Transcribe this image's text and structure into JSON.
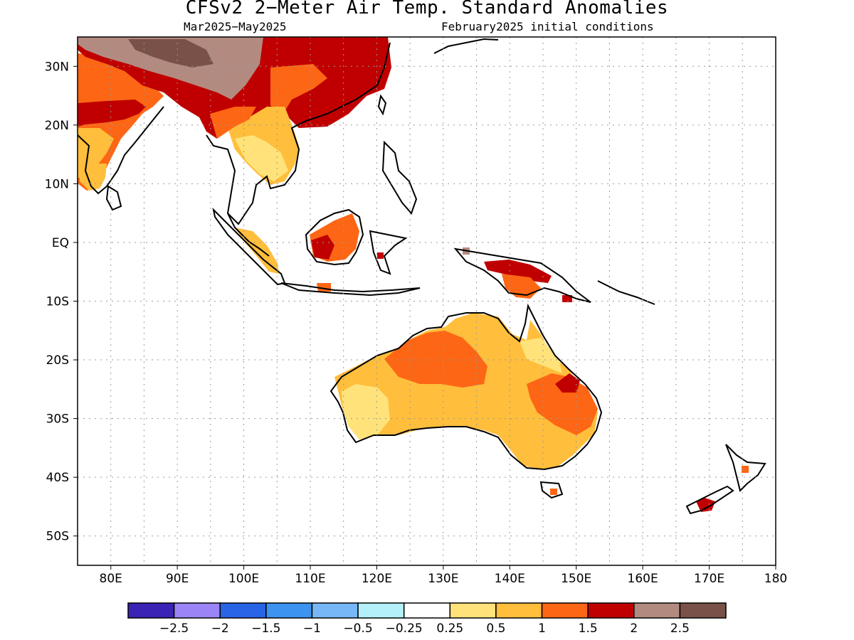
{
  "title": "CFSv2 2−Meter Air Temp. Standard Anomalies",
  "period": "Mar2025−May2025",
  "init": "February2025 initial conditions",
  "lat_labels": [
    "30N",
    "20N",
    "10N",
    "EQ",
    "10S",
    "20S",
    "30S",
    "40S",
    "50S"
  ],
  "lon_labels": [
    "80E",
    "90E",
    "100E",
    "110E",
    "120E",
    "130E",
    "140E",
    "150E",
    "160E",
    "170E",
    "180"
  ],
  "colorbar": {
    "colors": [
      "#3a23b5",
      "#9b84f5",
      "#2a64e6",
      "#3c93f0",
      "#78b7f7",
      "#b4f0fa",
      "#ffffff",
      "#ffe37a",
      "#ffbe3c",
      "#fd6614",
      "#c00000",
      "#b38a80",
      "#7a5148"
    ],
    "labels": [
      "−2.5",
      "−2",
      "−1.5",
      "−1",
      "−0.5",
      "−0.25",
      "0.25",
      "0.5",
      "1",
      "1.5",
      "2",
      "2.5"
    ]
  },
  "map_view": {
    "lon_min": 75,
    "lon_max": 180,
    "lat_min": -55,
    "lat_max": 35
  }
}
